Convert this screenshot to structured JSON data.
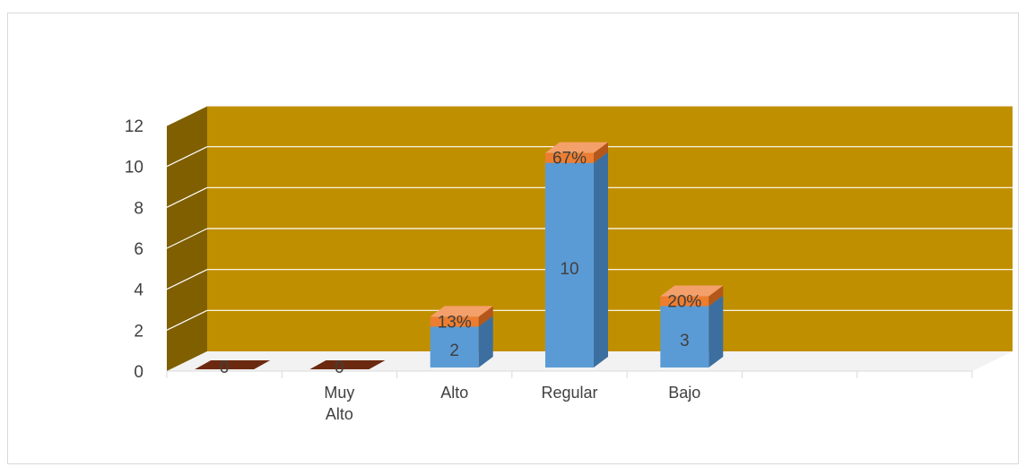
{
  "chart_data": {
    "type": "bar",
    "style": "3d-stacked-column",
    "categories": [
      "",
      "Muy Alto",
      "Alto",
      "Regular",
      "Bajo",
      "",
      ""
    ],
    "category_label_lines": [
      [],
      [
        "Muy",
        "Alto"
      ],
      [
        "Alto"
      ],
      [
        "Regular"
      ],
      [
        "Bajo"
      ],
      [],
      []
    ],
    "series": [
      {
        "values": [
          0,
          0,
          2,
          10,
          3,
          null,
          null
        ],
        "labels": [
          "0",
          "0",
          "2",
          "10",
          "3",
          "",
          ""
        ]
      },
      {
        "values": [
          0,
          0,
          0.13,
          0.67,
          0.2,
          null,
          null
        ],
        "labels": [
          "",
          "",
          "13%",
          "67%",
          "20%",
          "",
          ""
        ]
      }
    ],
    "ylim": [
      0,
      12
    ],
    "yticks": [
      0,
      2,
      4,
      6,
      8,
      10,
      12
    ],
    "grid": true,
    "legend": "none",
    "colors": {
      "back_wall": "#c08f00",
      "side_wall": "#7f5f00",
      "floor": "#f2f2f2",
      "gridline": "#ffffff",
      "bar_front": "#5b9bd5",
      "bar_side": "#3c6f9f",
      "bar_top": "#8fbde8",
      "cap_front": "#ed7d31",
      "cap_side": "#b4571b",
      "cap_top": "#f4a06a",
      "zero_bar": "#6b2a10"
    }
  }
}
